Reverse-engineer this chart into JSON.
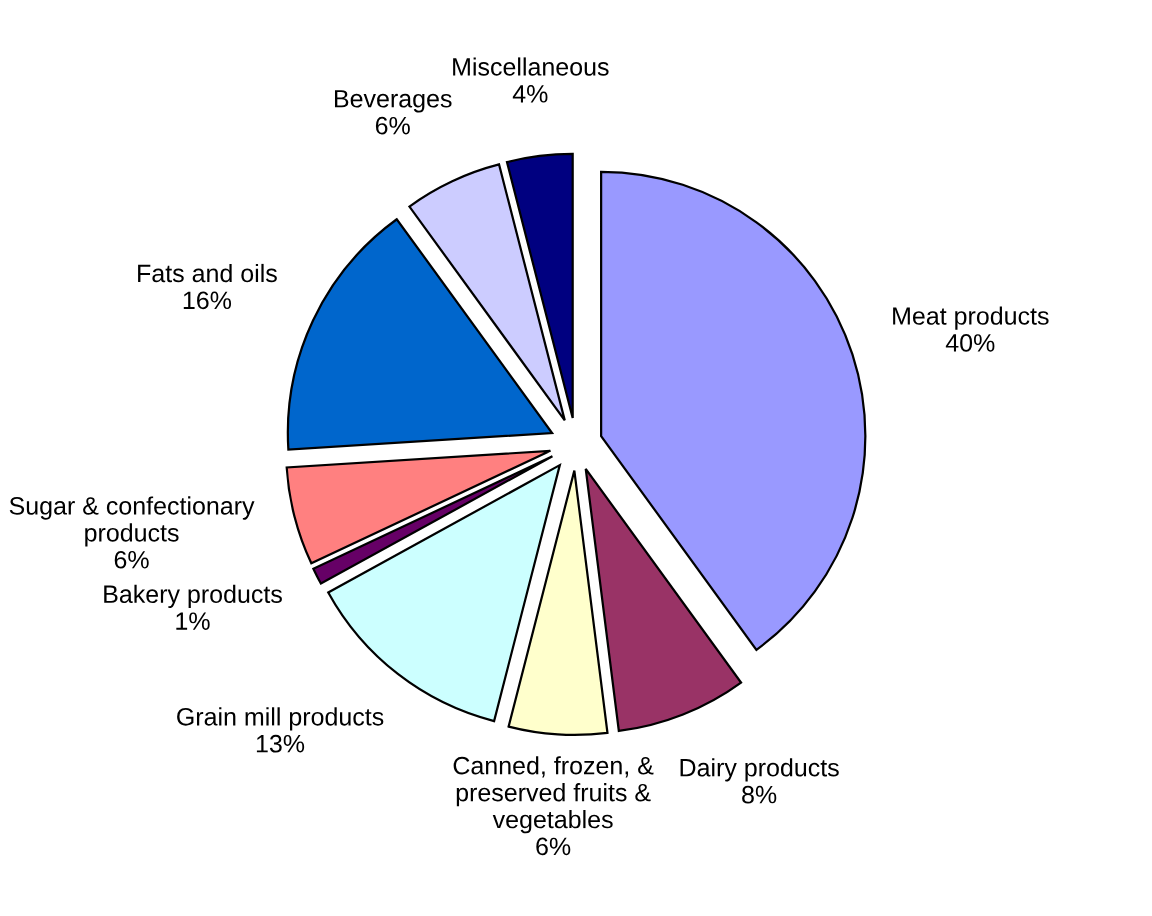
{
  "chart_data": {
    "type": "pie",
    "categories": [
      "Meat products",
      "Dairy products",
      "Canned, frozen, &\npreserved fruits &\nvegetables",
      "Grain mill products",
      "Bakery products",
      "Sugar & confectionary\nproducts",
      "Fats and oils",
      "Beverages",
      "Miscellaneous"
    ],
    "values": [
      40,
      8,
      6,
      13,
      1,
      6,
      16,
      6,
      4
    ],
    "value_labels": [
      "40%",
      "8%",
      "6%",
      "13%",
      "1%",
      "6%",
      "16%",
      "6%",
      "4%"
    ],
    "colors": [
      "#9999ff",
      "#993366",
      "#ffffcc",
      "#ccffff",
      "#660066",
      "#ff8080",
      "#0066cc",
      "#ccccff",
      "#000080"
    ]
  }
}
